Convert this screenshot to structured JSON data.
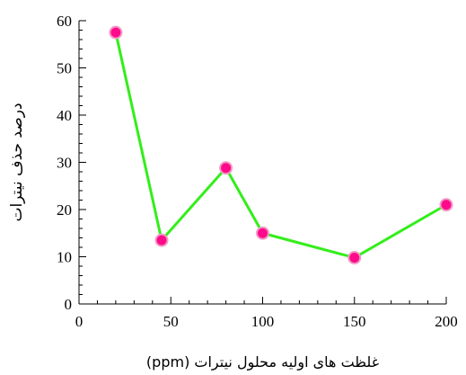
{
  "chart_data": {
    "type": "line",
    "title": "",
    "xlabel": "غلظت های اولیه محلول نیترات (ppm)",
    "ylabel": "درصد حذف نیترات",
    "xlim": [
      0,
      200
    ],
    "ylim": [
      0,
      60
    ],
    "xticks": [
      0,
      50,
      100,
      150,
      200
    ],
    "yticks": [
      0,
      10,
      20,
      30,
      40,
      50,
      60
    ],
    "grid": false,
    "legend": "none",
    "series": [
      {
        "x": [
          20,
          45,
          80,
          100,
          150,
          200
        ],
        "y": [
          57.5,
          13.5,
          28.8,
          15.0,
          9.8,
          21.0
        ],
        "line_color": "#33ee1a",
        "marker_color": "#ff0a8a",
        "marker_edge_color": "#f09ac6"
      }
    ]
  }
}
